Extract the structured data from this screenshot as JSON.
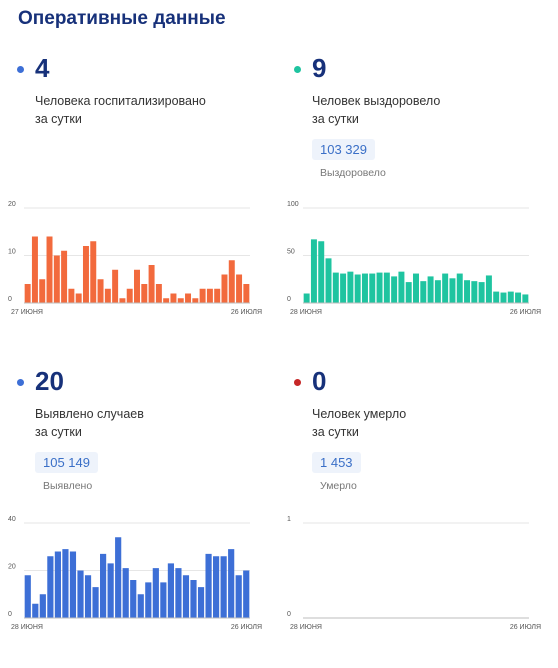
{
  "header": {
    "title": "Оперативные данные"
  },
  "cards": [
    {
      "number": "4",
      "desc_line1": "Человека госпитализировано",
      "desc_line2": "за сутки",
      "total": "",
      "total_label": "",
      "dot_color": "#3d6fd6"
    },
    {
      "number": "9",
      "desc_line1": "Человек выздоровело",
      "desc_line2": "за сутки",
      "total": "103 329",
      "total_label": "Выздоровело",
      "dot_color": "#1fc4a0"
    },
    {
      "number": "20",
      "desc_line1": "Выявлено случаев",
      "desc_line2": "за сутки",
      "total": "105 149",
      "total_label": "Выявлено",
      "dot_color": "#3d6fd6"
    },
    {
      "number": "0",
      "desc_line1": "Человек умерло",
      "desc_line2": "за сутки",
      "total": "1 453",
      "total_label": "Умерло",
      "dot_color": "#c62828"
    }
  ],
  "chart_data": [
    {
      "type": "bar",
      "color": "#f26a3d",
      "ylim": [
        0,
        20
      ],
      "yticks": [
        "0",
        "10",
        "20"
      ],
      "x_start_label": "27 июня",
      "x_end_label": "26 июля",
      "values": [
        4,
        14,
        5,
        14,
        10,
        11,
        3,
        2,
        12,
        13,
        5,
        3,
        7,
        1,
        3,
        7,
        4,
        8,
        4,
        1,
        2,
        1,
        2,
        1,
        3,
        3,
        3,
        6,
        9,
        6,
        4
      ]
    },
    {
      "type": "bar",
      "color": "#1fc4a0",
      "ylim": [
        0,
        100
      ],
      "yticks": [
        "0",
        "50",
        "100"
      ],
      "x_start_label": "28 июня",
      "x_end_label": "26 июля",
      "values": [
        10,
        67,
        65,
        47,
        32,
        31,
        33,
        30,
        31,
        31,
        32,
        32,
        28,
        33,
        22,
        31,
        23,
        28,
        24,
        31,
        26,
        31,
        24,
        23,
        22,
        29,
        12,
        11,
        12,
        11,
        9
      ]
    },
    {
      "type": "bar",
      "color": "#3d6fd6",
      "ylim": [
        0,
        40
      ],
      "yticks": [
        "0",
        "20",
        "40"
      ],
      "x_start_label": "28 июня",
      "x_end_label": "26 июля",
      "values": [
        18,
        6,
        10,
        26,
        28,
        29,
        28,
        20,
        18,
        13,
        27,
        23,
        34,
        21,
        16,
        10,
        15,
        21,
        15,
        23,
        21,
        18,
        16,
        13,
        27,
        26,
        26,
        29,
        18,
        20
      ]
    },
    {
      "type": "bar",
      "color": "#c62828",
      "ylim": [
        0,
        1
      ],
      "yticks": [
        "0",
        "1"
      ],
      "x_start_label": "28 июня",
      "x_end_label": "26 июля",
      "values": [
        0,
        0,
        0,
        0,
        0,
        0,
        0,
        0,
        0,
        0,
        0,
        0,
        0,
        0,
        0,
        0,
        0,
        0,
        0,
        0,
        0,
        0,
        0,
        0,
        0,
        0,
        0,
        0,
        0,
        0
      ]
    }
  ]
}
